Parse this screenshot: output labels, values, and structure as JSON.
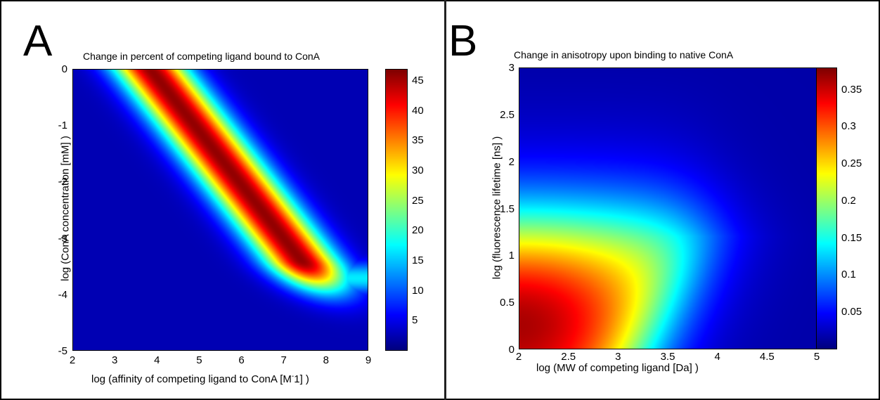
{
  "chart_data": [
    {
      "panel_label": "A",
      "type": "heatmap",
      "title": "Change in percent of competing ligand bound to ConA",
      "xlabel": "log (affinity of competing ligand to ConA [M",
      "xlabel_sup": "-",
      "xlabel_tail": "1] )",
      "ylabel": "log (ConA concentration [mM] )",
      "xlim": [
        2,
        9
      ],
      "ylim": [
        -5,
        0
      ],
      "xticks": [
        "2",
        "3",
        "4",
        "5",
        "6",
        "7",
        "8",
        "9"
      ],
      "yticks": [
        "0",
        "-1",
        "-2",
        "-3",
        "-4",
        "-5"
      ],
      "colorbar": {
        "min": 0,
        "max": 47,
        "ticks": [
          "45",
          "40",
          "35",
          "30",
          "25",
          "20",
          "15",
          "10",
          "5"
        ],
        "colormap": "jet"
      },
      "description_values": {
        "peak_value": 47,
        "ridge": "diagonal ridge from (x≈3.8, y=0) to (x≈7.6, y≈-3.6)"
      }
    },
    {
      "panel_label": "B",
      "type": "heatmap",
      "title": "Change in anisotropy upon binding to native ConA",
      "xlabel": "log (MW of competing ligand [Da] )",
      "ylabel": "log (fluorescence lifetime [ns] )",
      "xlim": [
        2,
        5
      ],
      "ylim": [
        0,
        3
      ],
      "xticks": [
        "2",
        "2.5",
        "3",
        "3.5",
        "4",
        "4.5",
        "5"
      ],
      "yticks": [
        "3",
        "2.5",
        "2",
        "1.5",
        "1",
        "0.5",
        "0"
      ],
      "colorbar": {
        "min": 0,
        "max": 0.38,
        "ticks": [
          "0.35",
          "0.3",
          "0.25",
          "0.2",
          "0.15",
          "0.1",
          "0.05"
        ],
        "colormap": "jet"
      },
      "description_values": {
        "peak_value": 0.38,
        "peak_location": "x≈2, y≈0.35"
      }
    }
  ]
}
